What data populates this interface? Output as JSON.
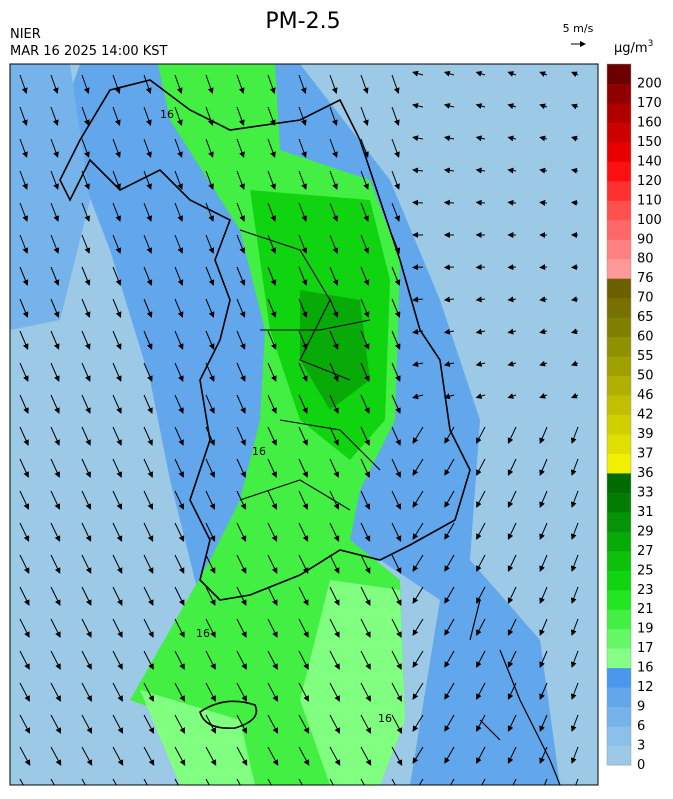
{
  "header": {
    "title": "PM-2.5",
    "agency": "NIER",
    "timestamp": "MAR 16 2025 14:00 KST",
    "wind_scale": "5 m/s"
  },
  "legend": {
    "unit_base": "μg/m",
    "unit_exponent": "3",
    "levels": [
      0,
      3,
      6,
      9,
      12,
      16,
      17,
      19,
      21,
      23,
      25,
      27,
      29,
      31,
      33,
      36,
      37,
      39,
      42,
      46,
      50,
      55,
      60,
      65,
      70,
      76,
      80,
      90,
      100,
      110,
      120,
      140,
      150,
      160,
      170,
      200
    ],
    "colors": [
      "#9ccae6",
      "#8bc0e8",
      "#76b3ea",
      "#62a6ec",
      "#4a97ee",
      "#86ff86",
      "#66f766",
      "#44ef44",
      "#22e622",
      "#10d410",
      "#0cc00c",
      "#08aa08",
      "#059405",
      "#037e03",
      "#016c01",
      "#f0f000",
      "#e0e000",
      "#d0d000",
      "#c0c000",
      "#b0b000",
      "#a0a000",
      "#909000",
      "#808000",
      "#787000",
      "#6a6000",
      "#ff9898",
      "#ff8080",
      "#ff6868",
      "#ff5050",
      "#ff3030",
      "#ff1010",
      "#e80000",
      "#cc0000",
      "#b00000",
      "#900000",
      "#6c0000"
    ]
  },
  "map": {
    "contour_label": "16"
  }
}
